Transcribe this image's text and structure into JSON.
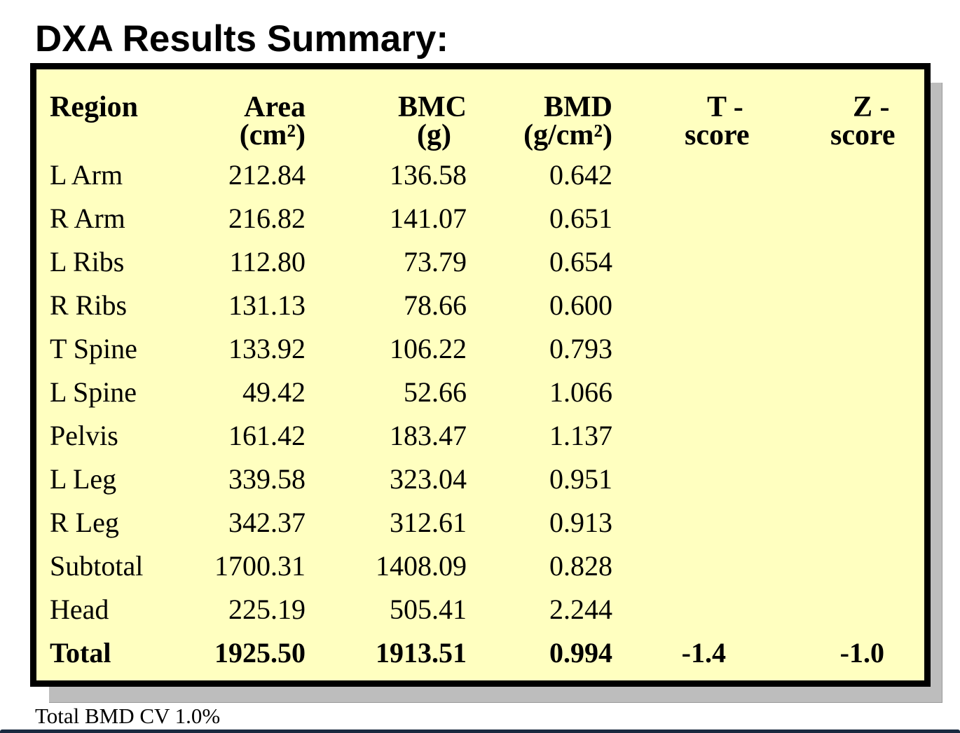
{
  "title": "DXA Results Summary:",
  "headers": {
    "region": "Region",
    "area_line1": "Area",
    "area_line2": "(cm²)",
    "bmc_line1": "BMC",
    "bmc_line2": "(g)",
    "bmd_line1": "BMD",
    "bmd_line2": "(g/cm²)",
    "t_line1": "T -",
    "t_line2": "score",
    "z_line1": "Z -",
    "z_line2": "score"
  },
  "rows": [
    {
      "region": "L Arm",
      "area": "212.84",
      "bmc": "136.58",
      "bmd": "0.642",
      "t": "",
      "z": ""
    },
    {
      "region": "R Arm",
      "area": "216.82",
      "bmc": "141.07",
      "bmd": "0.651",
      "t": "",
      "z": ""
    },
    {
      "region": "L Ribs",
      "area": "112.80",
      "bmc": "73.79",
      "bmd": "0.654",
      "t": "",
      "z": ""
    },
    {
      "region": "R Ribs",
      "area": "131.13",
      "bmc": "78.66",
      "bmd": "0.600",
      "t": "",
      "z": ""
    },
    {
      "region": "T Spine",
      "area": "133.92",
      "bmc": "106.22",
      "bmd": "0.793",
      "t": "",
      "z": ""
    },
    {
      "region": "L Spine",
      "area": "49.42",
      "bmc": "52.66",
      "bmd": "1.066",
      "t": "",
      "z": ""
    },
    {
      "region": "Pelvis",
      "area": "161.42",
      "bmc": "183.47",
      "bmd": "1.137",
      "t": "",
      "z": ""
    },
    {
      "region": "L Leg",
      "area": "339.58",
      "bmc": "323.04",
      "bmd": "0.951",
      "t": "",
      "z": ""
    },
    {
      "region": "R Leg",
      "area": "342.37",
      "bmc": "312.61",
      "bmd": "0.913",
      "t": "",
      "z": ""
    },
    {
      "region": "Subtotal",
      "area": "1700.31",
      "bmc": "1408.09",
      "bmd": "0.828",
      "t": "",
      "z": ""
    },
    {
      "region": "Head",
      "area": "225.19",
      "bmc": "505.41",
      "bmd": "2.244",
      "t": "",
      "z": ""
    },
    {
      "region": "Total",
      "area": "1925.50",
      "bmc": "1913.51",
      "bmd": "0.994",
      "t": "-1.4",
      "z": "-1.0"
    }
  ],
  "footer": "Total BMD CV 1.0%",
  "colors": {
    "panel_background": "#ffffc0",
    "panel_border": "#000000",
    "shadow": "#bdbdbd"
  }
}
